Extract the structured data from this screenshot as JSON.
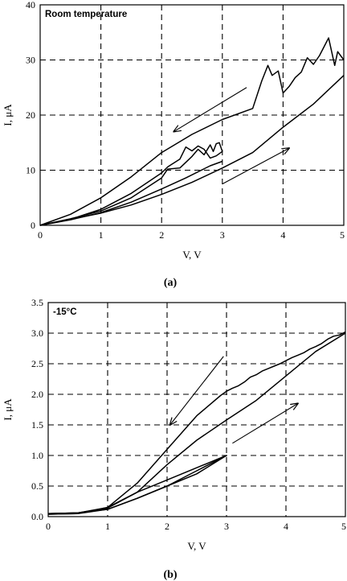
{
  "chart_data": [
    {
      "type": "line",
      "panel_label": "Room temperature",
      "caption": "(a)",
      "xlabel": "V, V",
      "ylabel": "I, μA",
      "xlim": [
        0,
        5
      ],
      "ylim": [
        0,
        40
      ],
      "xticks": [
        0,
        1,
        2,
        3,
        4,
        5
      ],
      "yticks": [
        0,
        10,
        20,
        30,
        40
      ],
      "grid": true,
      "series": [
        {
          "values": [
            [
              0,
              0
            ],
            [
              0.5,
              1.0
            ],
            [
              1,
              2.3
            ],
            [
              1.5,
              4.2
            ],
            [
              2,
              6.6
            ],
            [
              2.4,
              8.6
            ],
            [
              2.8,
              10.8
            ],
            [
              3.0,
              11.6
            ]
          ]
        },
        {
          "values": [
            [
              0,
              0
            ],
            [
              0.5,
              1.1
            ],
            [
              1,
              2.2
            ],
            [
              1.5,
              3.7
            ],
            [
              2,
              5.6
            ],
            [
              2.5,
              7.8
            ],
            [
              3.0,
              10.4
            ],
            [
              3.5,
              13.2
            ],
            [
              4.0,
              17.8
            ],
            [
              4.5,
              22.0
            ],
            [
              5.0,
              27.2
            ]
          ]
        },
        {
          "values": [
            [
              5.0,
              30.0
            ],
            [
              4.9,
              31.5
            ],
            [
              4.85,
              29.0
            ],
            [
              4.75,
              34.0
            ],
            [
              4.6,
              30.8
            ],
            [
              4.5,
              29.2
            ],
            [
              4.4,
              30.4
            ],
            [
              4.3,
              27.8
            ],
            [
              4.2,
              26.8
            ],
            [
              4.1,
              25.2
            ],
            [
              4.0,
              24.0
            ],
            [
              3.92,
              28.0
            ],
            [
              3.82,
              27.2
            ],
            [
              3.75,
              29.0
            ],
            [
              3.65,
              26.2
            ],
            [
              3.5,
              21.2
            ],
            [
              3.0,
              19.2
            ],
            [
              2.5,
              16.5
            ],
            [
              2.0,
              13.2
            ],
            [
              1.5,
              8.8
            ],
            [
              1,
              5.0
            ],
            [
              0.5,
              2.0
            ],
            [
              0,
              0
            ]
          ]
        },
        {
          "values": [
            [
              0,
              0
            ],
            [
              0.5,
              1.2
            ],
            [
              1,
              2.6
            ],
            [
              1.5,
              5.0
            ],
            [
              2,
              8.6
            ],
            [
              2.1,
              10.2
            ],
            [
              2.3,
              10.4
            ],
            [
              2.5,
              12.5
            ],
            [
              2.6,
              13.8
            ],
            [
              2.7,
              12.8
            ],
            [
              2.8,
              14.6
            ],
            [
              2.85,
              13.4
            ],
            [
              2.9,
              14.8
            ],
            [
              2.95,
              15.0
            ],
            [
              3.0,
              13.4
            ],
            [
              2.9,
              12.6
            ],
            [
              2.8,
              12.2
            ],
            [
              2.7,
              13.8
            ],
            [
              2.6,
              14.4
            ],
            [
              2.5,
              13.5
            ],
            [
              2.4,
              14.2
            ],
            [
              2.3,
              12.0
            ],
            [
              2.1,
              10.6
            ],
            [
              2.0,
              9.5
            ],
            [
              1.5,
              5.8
            ],
            [
              1.0,
              2.9
            ],
            [
              0.5,
              1.1
            ],
            [
              0,
              0
            ]
          ]
        }
      ],
      "arrows": [
        {
          "from": [
            3.0,
            7.5
          ],
          "to": [
            4.1,
            14.0
          ]
        },
        {
          "from": [
            3.4,
            25.0
          ],
          "to": [
            2.2,
            17.0
          ]
        }
      ]
    },
    {
      "type": "line",
      "panel_label": "-15°C",
      "caption": "(b)",
      "xlabel": "V, V",
      "ylabel": "I, μA",
      "xlim": [
        0,
        5
      ],
      "ylim": [
        0,
        3.5
      ],
      "xticks": [
        0,
        1,
        2,
        3,
        4,
        5
      ],
      "yticks": [
        0.0,
        0.5,
        1.0,
        1.5,
        2.0,
        2.5,
        3.0,
        3.5
      ],
      "grid": true,
      "series": [
        {
          "values": [
            [
              0,
              0.05
            ],
            [
              0.5,
              0.06
            ],
            [
              1,
              0.15
            ],
            [
              1.5,
              0.4
            ],
            [
              2,
              0.6
            ],
            [
              2.5,
              0.8
            ],
            [
              3,
              1.0
            ]
          ]
        },
        {
          "values": [
            [
              0,
              0.05
            ],
            [
              0.5,
              0.06
            ],
            [
              1,
              0.12
            ],
            [
              1.5,
              0.3
            ],
            [
              2,
              0.5
            ],
            [
              2.5,
              0.75
            ],
            [
              3,
              1.0
            ]
          ]
        },
        {
          "values": [
            [
              3,
              1.0
            ],
            [
              2.5,
              0.7
            ],
            [
              2,
              0.5
            ],
            [
              1.5,
              0.3
            ],
            [
              1,
              0.12
            ],
            [
              0.5,
              0.05
            ],
            [
              0,
              0.04
            ]
          ]
        },
        {
          "values": [
            [
              0,
              0.05
            ],
            [
              0.5,
              0.06
            ],
            [
              1,
              0.14
            ],
            [
              1.5,
              0.4
            ],
            [
              2,
              0.85
            ],
            [
              2.5,
              1.25
            ],
            [
              3,
              1.58
            ],
            [
              3.5,
              1.9
            ],
            [
              4,
              2.3
            ],
            [
              4.5,
              2.7
            ],
            [
              5,
              3.0
            ]
          ]
        },
        {
          "values": [
            [
              5,
              3.02
            ],
            [
              4.9,
              2.97
            ],
            [
              4.8,
              2.95
            ],
            [
              4.7,
              2.9
            ],
            [
              4.6,
              2.83
            ],
            [
              4.5,
              2.78
            ],
            [
              4.4,
              2.74
            ],
            [
              4.3,
              2.68
            ],
            [
              4.2,
              2.64
            ],
            [
              4.1,
              2.6
            ],
            [
              4.0,
              2.55
            ],
            [
              3.9,
              2.5
            ],
            [
              3.8,
              2.46
            ],
            [
              3.7,
              2.42
            ],
            [
              3.6,
              2.38
            ],
            [
              3.5,
              2.32
            ],
            [
              3.4,
              2.28
            ],
            [
              3.3,
              2.2
            ],
            [
              3.2,
              2.14
            ],
            [
              3.1,
              2.1
            ],
            [
              3.0,
              2.05
            ],
            [
              2.9,
              1.98
            ],
            [
              2.5,
              1.65
            ],
            [
              2.0,
              1.1
            ],
            [
              1.5,
              0.55
            ],
            [
              1.0,
              0.15
            ],
            [
              0.5,
              0.05
            ],
            [
              0,
              0.04
            ]
          ]
        }
      ],
      "arrows": [
        {
          "from": [
            3.1,
            1.2
          ],
          "to": [
            4.2,
            1.85
          ]
        },
        {
          "from": [
            2.95,
            2.62
          ],
          "to": [
            2.05,
            1.5
          ]
        }
      ]
    }
  ]
}
